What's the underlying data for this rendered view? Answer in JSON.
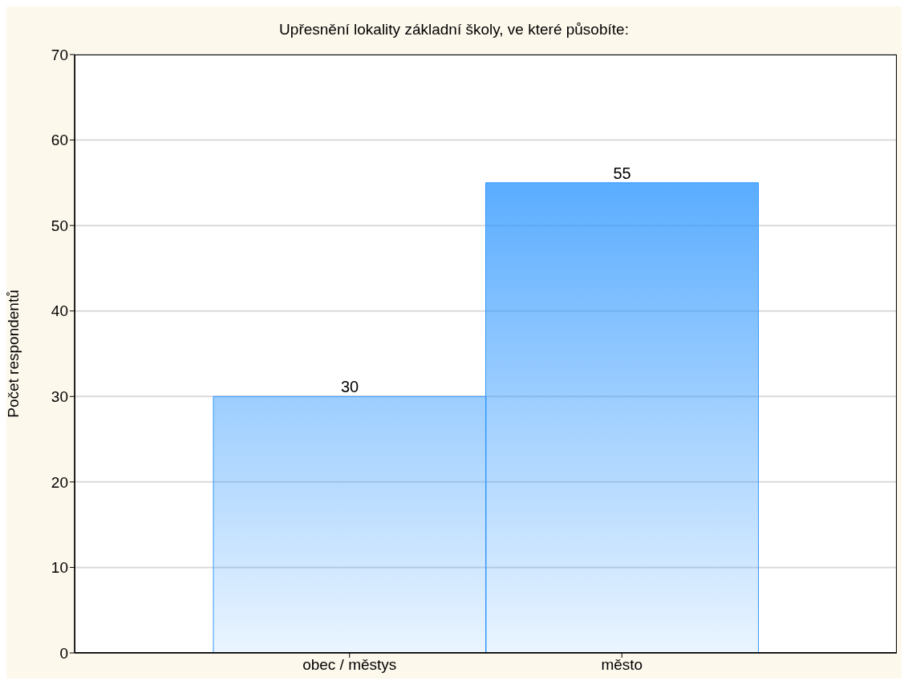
{
  "chart_data": {
    "type": "bar",
    "title": "Upřesnění lokality základní školy, ve které působíte:",
    "ylabel": "Počet respondentů",
    "categories": [
      "obec / městys",
      "město"
    ],
    "values": [
      30,
      55
    ],
    "color": "#3399ff",
    "ylim": [
      0,
      70
    ],
    "yticks": [
      0,
      10,
      20,
      30,
      40,
      50,
      60,
      70
    ],
    "grid": "y",
    "data_labels": true
  }
}
